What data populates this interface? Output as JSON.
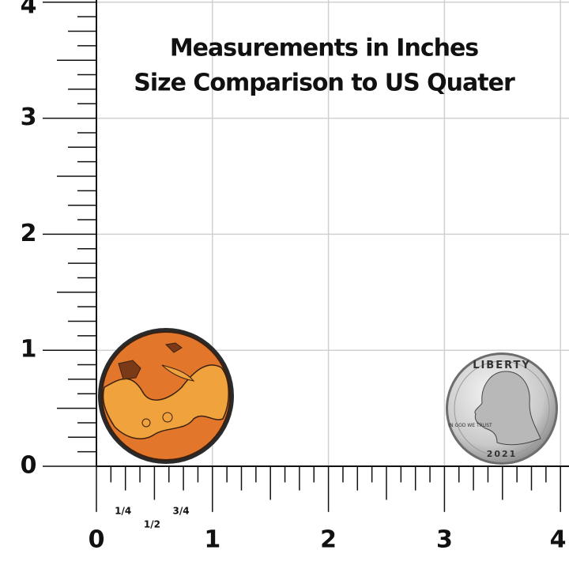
{
  "title": {
    "line1": "Measurements in Inches",
    "line2": "Size Comparison to US Quater"
  },
  "y_axis": {
    "labels": [
      "0",
      "1",
      "2",
      "3",
      "4"
    ]
  },
  "x_axis": {
    "labels": [
      "0",
      "1",
      "2",
      "3",
      "4"
    ],
    "fractions": [
      "1/4",
      "1/2",
      "3/4"
    ]
  },
  "coin": {
    "top": "LIBERTY",
    "motto": "IN GOD WE TRUST",
    "year": "2021"
  }
}
